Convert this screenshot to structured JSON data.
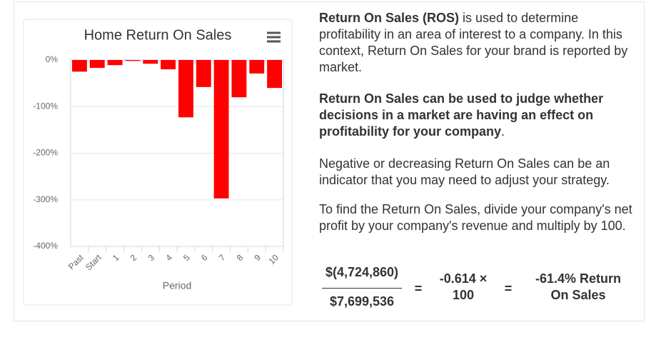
{
  "chart_data": {
    "type": "bar",
    "title": "Home Return On Sales",
    "x_label": "Period",
    "categories": [
      "Past",
      "Start",
      "1",
      "2",
      "3",
      "4",
      "5",
      "6",
      "7",
      "8",
      "9",
      "10"
    ],
    "values": [
      -25,
      -17,
      -11,
      -2,
      -8,
      -20,
      -123,
      -58,
      -297,
      -80,
      -29,
      -60
    ],
    "color": "#ff0000",
    "ylim": [
      -400,
      0
    ],
    "yticks": [
      {
        "value": -400,
        "label": "-400%"
      },
      {
        "value": -300,
        "label": "-300%"
      },
      {
        "value": -200,
        "label": "-200%"
      },
      {
        "value": -100,
        "label": "-100%"
      },
      {
        "value": 0,
        "label": "0%"
      }
    ],
    "grid": true
  },
  "panel": {
    "paragraphs": [
      [
        "Return On Sales (ROS)",
        " is used to determine profitability in an area of interest to a company. In this context, Return On Sales for your brand is reported by market."
      ],
      [
        "Return On Sales can be used to judge whether decisions in a market are having an effect on profitability for your company",
        "."
      ],
      [
        "Negative or decreasing Return On Sales can be an indicator that you may need to adjust your strategy."
      ],
      [
        "To find the Return On Sales, divide your company's net profit by your company's revenue and multiply by 100."
      ]
    ],
    "formula": {
      "numerator": "$(4,724,860)",
      "denominator": "$7,699,536",
      "equals_1": "=",
      "product": "-0.614 × 100",
      "equals_2": "=",
      "result": "-61.4% Return On Sales"
    }
  }
}
